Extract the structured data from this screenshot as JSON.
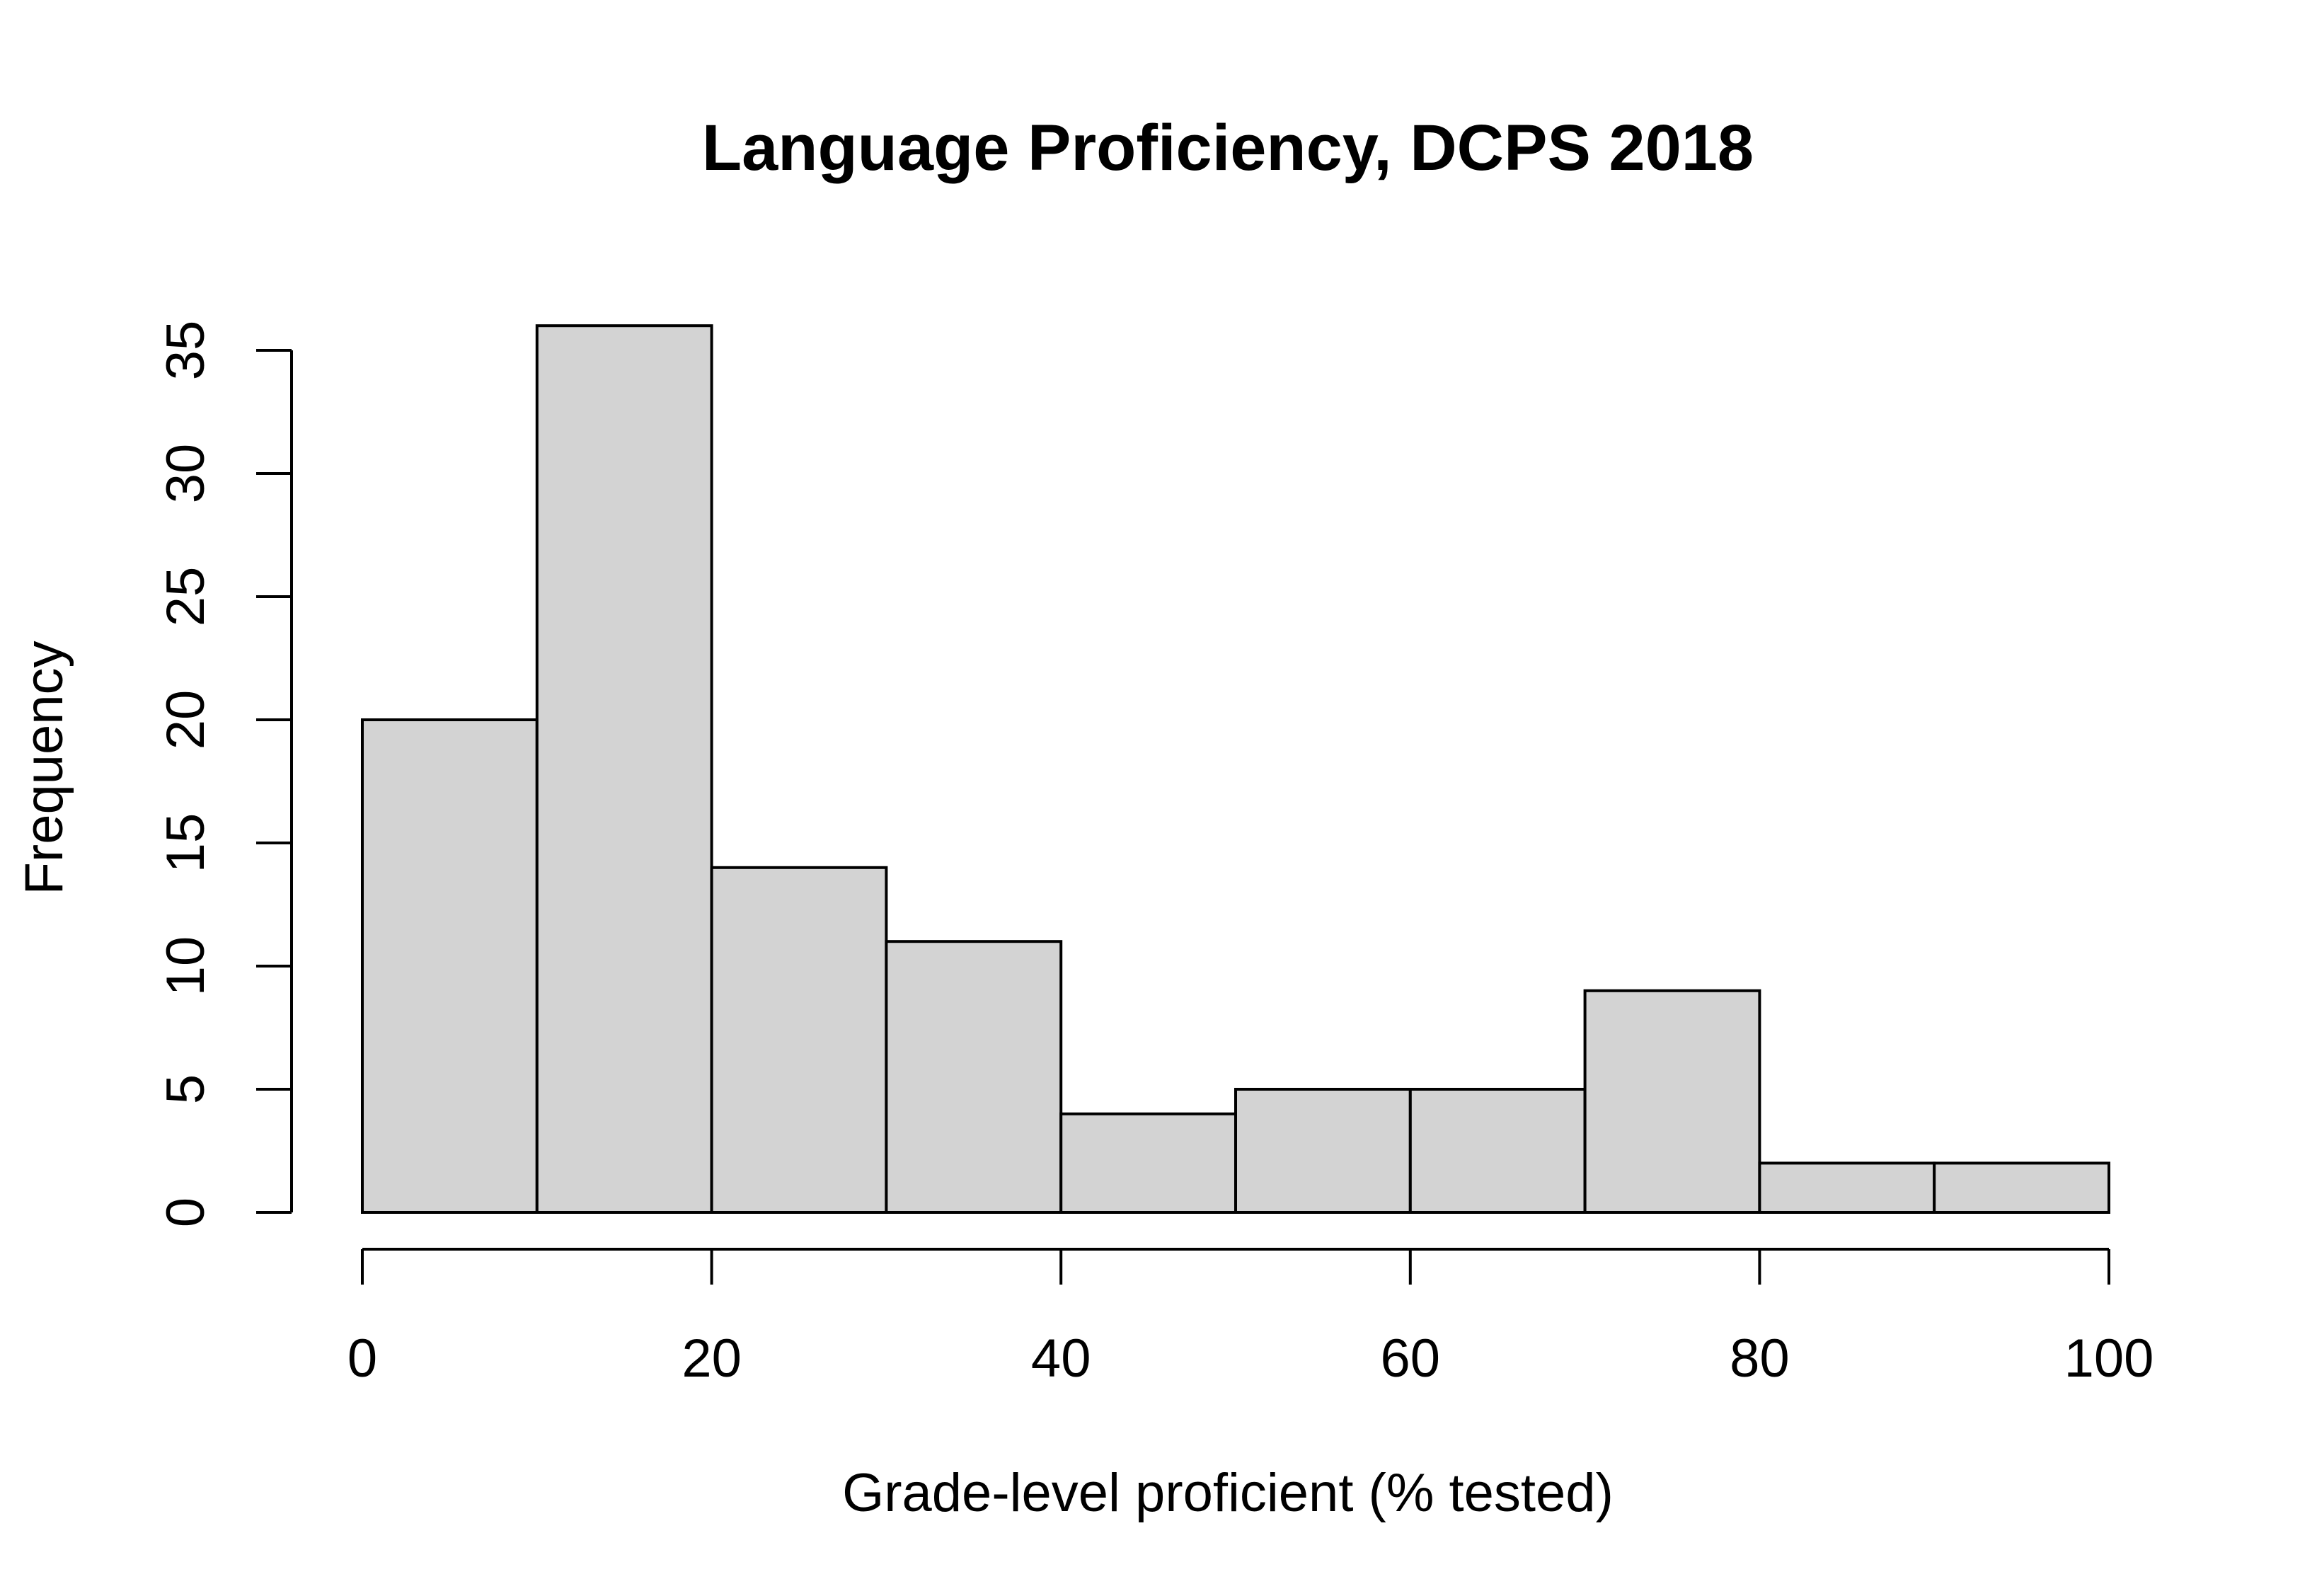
{
  "chart_data": {
    "type": "bar",
    "title": "Language Proficiency, DCPS 2018",
    "xlabel": "Grade-level proficient (% tested)",
    "ylabel": "Frequency",
    "bins": [
      {
        "from": 0,
        "to": 10,
        "count": 20
      },
      {
        "from": 10,
        "to": 20,
        "count": 36
      },
      {
        "from": 20,
        "to": 30,
        "count": 14
      },
      {
        "from": 30,
        "to": 40,
        "count": 11
      },
      {
        "from": 40,
        "to": 50,
        "count": 4
      },
      {
        "from": 50,
        "to": 60,
        "count": 5
      },
      {
        "from": 60,
        "to": 70,
        "count": 5
      },
      {
        "from": 70,
        "to": 80,
        "count": 9
      },
      {
        "from": 80,
        "to": 90,
        "count": 2
      },
      {
        "from": 90,
        "to": 100,
        "count": 2
      }
    ],
    "xlim": [
      0,
      100
    ],
    "ylim": [
      0,
      37
    ],
    "x_ticks": [
      0,
      20,
      40,
      60,
      80,
      100
    ],
    "y_ticks": [
      0,
      5,
      10,
      15,
      20,
      25,
      30,
      35
    ],
    "x_tick_labels": [
      "0",
      "20",
      "40",
      "60",
      "80",
      "100"
    ],
    "y_tick_labels": [
      "0",
      "5",
      "10",
      "15",
      "20",
      "25",
      "30",
      "35"
    ],
    "grid": false,
    "legend": "none",
    "colors": {
      "bar_fill": "#d3d3d3",
      "bar_stroke": "#000000",
      "axis": "#000000",
      "background": "#ffffff"
    }
  }
}
